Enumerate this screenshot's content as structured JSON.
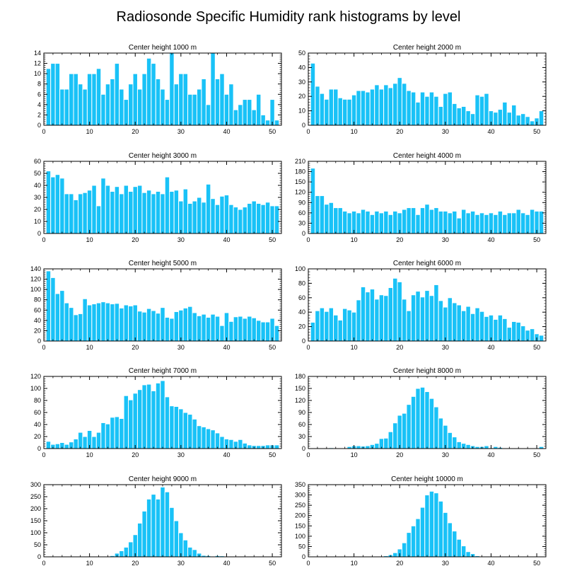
{
  "figure": {
    "title": "Radiosonde Specific Humidity rank histograms by level"
  },
  "chart_data": [
    {
      "type": "bar",
      "title": "Center height 1000 m",
      "xticks": [
        0,
        10,
        20,
        30,
        40,
        50
      ],
      "xlim": [
        0,
        52
      ],
      "ylim": [
        0,
        14
      ],
      "yticks": [
        0,
        2,
        4,
        6,
        8,
        10,
        12,
        14
      ],
      "categories": [
        1,
        2,
        3,
        4,
        5,
        6,
        7,
        8,
        9,
        10,
        11,
        12,
        13,
        14,
        15,
        16,
        17,
        18,
        19,
        20,
        21,
        22,
        23,
        24,
        25,
        26,
        27,
        28,
        29,
        30,
        31,
        32,
        33,
        34,
        35,
        36,
        37,
        38,
        39,
        40,
        41,
        42,
        43,
        44,
        45,
        46,
        47,
        48,
        49,
        50,
        51
      ],
      "values": [
        11,
        12,
        12,
        7,
        7,
        10,
        10,
        8,
        7,
        10,
        10,
        11,
        6,
        8,
        9,
        12,
        7,
        5,
        8,
        10,
        7,
        10,
        13,
        12,
        9,
        7,
        5,
        14,
        8,
        10,
        10,
        6,
        6,
        7,
        9,
        4,
        14,
        9,
        10,
        6,
        8,
        3,
        4,
        5,
        5,
        3,
        6,
        2,
        1,
        5,
        1
      ]
    },
    {
      "type": "bar",
      "title": "Center height 2000 m",
      "xticks": [
        0,
        10,
        20,
        30,
        40,
        50
      ],
      "xlim": [
        0,
        52
      ],
      "ylim": [
        0,
        50
      ],
      "yticks": [
        0,
        10,
        20,
        30,
        40,
        50
      ],
      "categories": [
        1,
        2,
        3,
        4,
        5,
        6,
        7,
        8,
        9,
        10,
        11,
        12,
        13,
        14,
        15,
        16,
        17,
        18,
        19,
        20,
        21,
        22,
        23,
        24,
        25,
        26,
        27,
        28,
        29,
        30,
        31,
        32,
        33,
        34,
        35,
        36,
        37,
        38,
        39,
        40,
        41,
        42,
        43,
        44,
        45,
        46,
        47,
        48,
        49,
        50,
        51
      ],
      "values": [
        43,
        27,
        22,
        18,
        25,
        25,
        19,
        18,
        18,
        21,
        24,
        24,
        23,
        25,
        28,
        25,
        28,
        26,
        29,
        33,
        29,
        24,
        23,
        16,
        23,
        20,
        23,
        20,
        13,
        22,
        23,
        15,
        12,
        13,
        10,
        8,
        21,
        20,
        22,
        10,
        9,
        11,
        16,
        9,
        14,
        7,
        8,
        6,
        3,
        5,
        10
      ]
    },
    {
      "type": "bar",
      "title": "Center height 3000 m",
      "xticks": [
        0,
        10,
        20,
        30,
        40,
        50
      ],
      "xlim": [
        0,
        52
      ],
      "ylim": [
        0,
        60
      ],
      "yticks": [
        0,
        10,
        20,
        30,
        40,
        50,
        60
      ],
      "categories": [
        1,
        2,
        3,
        4,
        5,
        6,
        7,
        8,
        9,
        10,
        11,
        12,
        13,
        14,
        15,
        16,
        17,
        18,
        19,
        20,
        21,
        22,
        23,
        24,
        25,
        26,
        27,
        28,
        29,
        30,
        31,
        32,
        33,
        34,
        35,
        36,
        37,
        38,
        39,
        40,
        41,
        42,
        43,
        44,
        45,
        46,
        47,
        48,
        49,
        50,
        51
      ],
      "values": [
        52,
        47,
        49,
        46,
        33,
        33,
        28,
        33,
        34,
        36,
        40,
        23,
        46,
        40,
        35,
        39,
        33,
        40,
        35,
        39,
        40,
        34,
        36,
        33,
        35,
        33,
        47,
        35,
        36,
        27,
        37,
        25,
        27,
        30,
        26,
        41,
        29,
        24,
        31,
        32,
        24,
        22,
        20,
        22,
        25,
        27,
        25,
        24,
        26,
        23,
        23
      ]
    },
    {
      "type": "bar",
      "title": "Center height 4000 m",
      "xticks": [
        0,
        10,
        20,
        30,
        40,
        50
      ],
      "xlim": [
        0,
        52
      ],
      "ylim": [
        0,
        210
      ],
      "yticks": [
        0,
        30,
        60,
        90,
        120,
        150,
        180,
        210
      ],
      "categories": [
        1,
        2,
        3,
        4,
        5,
        6,
        7,
        8,
        9,
        10,
        11,
        12,
        13,
        14,
        15,
        16,
        17,
        18,
        19,
        20,
        21,
        22,
        23,
        24,
        25,
        26,
        27,
        28,
        29,
        30,
        31,
        32,
        33,
        34,
        35,
        36,
        37,
        38,
        39,
        40,
        41,
        42,
        43,
        44,
        45,
        46,
        47,
        48,
        49,
        50,
        51
      ],
      "values": [
        190,
        110,
        110,
        85,
        90,
        75,
        75,
        65,
        60,
        65,
        60,
        70,
        65,
        55,
        65,
        60,
        65,
        55,
        65,
        60,
        70,
        75,
        75,
        55,
        75,
        85,
        70,
        75,
        65,
        65,
        60,
        65,
        45,
        70,
        60,
        65,
        55,
        60,
        55,
        60,
        55,
        65,
        55,
        60,
        60,
        70,
        60,
        55,
        70,
        65,
        65
      ]
    },
    {
      "type": "bar",
      "title": "Center height 5000 m",
      "xticks": [
        0,
        10,
        20,
        30,
        40,
        50
      ],
      "xlim": [
        0,
        52
      ],
      "ylim": [
        0,
        140
      ],
      "yticks": [
        0,
        20,
        40,
        60,
        80,
        100,
        120,
        140
      ],
      "categories": [
        1,
        2,
        3,
        4,
        5,
        6,
        7,
        8,
        9,
        10,
        11,
        12,
        13,
        14,
        15,
        16,
        17,
        18,
        19,
        20,
        21,
        22,
        23,
        24,
        25,
        26,
        27,
        28,
        29,
        30,
        31,
        32,
        33,
        34,
        35,
        36,
        37,
        38,
        39,
        40,
        41,
        42,
        43,
        44,
        45,
        46,
        47,
        48,
        49,
        50,
        51
      ],
      "values": [
        136,
        123,
        92,
        98,
        74,
        65,
        51,
        53,
        82,
        70,
        72,
        74,
        76,
        74,
        72,
        73,
        64,
        70,
        68,
        70,
        58,
        56,
        63,
        59,
        54,
        65,
        46,
        44,
        57,
        60,
        64,
        67,
        55,
        49,
        52,
        46,
        52,
        48,
        30,
        55,
        38,
        47,
        48,
        44,
        48,
        45,
        40,
        37,
        37,
        44,
        30
      ]
    },
    {
      "type": "bar",
      "title": "Center height 6000 m",
      "xticks": [
        0,
        10,
        20,
        30,
        40,
        50
      ],
      "xlim": [
        0,
        52
      ],
      "ylim": [
        0,
        100
      ],
      "yticks": [
        0,
        20,
        40,
        60,
        80,
        100
      ],
      "categories": [
        1,
        2,
        3,
        4,
        5,
        6,
        7,
        8,
        9,
        10,
        11,
        12,
        13,
        14,
        15,
        16,
        17,
        18,
        19,
        20,
        21,
        22,
        23,
        24,
        25,
        26,
        27,
        28,
        29,
        30,
        31,
        32,
        33,
        34,
        35,
        36,
        37,
        38,
        39,
        40,
        41,
        42,
        43,
        44,
        45,
        46,
        47,
        48,
        49,
        50,
        51
      ],
      "values": [
        26,
        42,
        46,
        41,
        46,
        36,
        29,
        45,
        43,
        40,
        57,
        75,
        68,
        72,
        58,
        64,
        63,
        74,
        87,
        82,
        58,
        42,
        64,
        69,
        61,
        70,
        63,
        78,
        56,
        47,
        60,
        53,
        50,
        42,
        48,
        38,
        46,
        41,
        34,
        36,
        30,
        36,
        31,
        19,
        27,
        26,
        21,
        15,
        17,
        10,
        8
      ]
    },
    {
      "type": "bar",
      "title": "Center height 7000 m",
      "xticks": [
        0,
        10,
        20,
        30,
        40,
        50
      ],
      "xlim": [
        0,
        52
      ],
      "ylim": [
        0,
        120
      ],
      "yticks": [
        0,
        20,
        40,
        60,
        80,
        100,
        120
      ],
      "categories": [
        1,
        2,
        3,
        4,
        5,
        6,
        7,
        8,
        9,
        10,
        11,
        12,
        13,
        14,
        15,
        16,
        17,
        18,
        19,
        20,
        21,
        22,
        23,
        24,
        25,
        26,
        27,
        28,
        29,
        30,
        31,
        32,
        33,
        34,
        35,
        36,
        37,
        38,
        39,
        40,
        41,
        42,
        43,
        44,
        45,
        46,
        47,
        48,
        49,
        50,
        51
      ],
      "values": [
        12,
        7,
        8,
        10,
        7,
        11,
        16,
        27,
        20,
        30,
        20,
        27,
        43,
        41,
        52,
        53,
        50,
        88,
        81,
        92,
        98,
        106,
        107,
        96,
        109,
        113,
        86,
        71,
        70,
        66,
        60,
        57,
        49,
        38,
        36,
        33,
        31,
        26,
        20,
        16,
        15,
        12,
        15,
        9,
        6,
        5,
        5,
        5,
        6,
        6,
        6
      ]
    },
    {
      "type": "bar",
      "title": "Center height 8000 m",
      "xticks": [
        0,
        10,
        20,
        30,
        40,
        50
      ],
      "xlim": [
        0,
        52
      ],
      "ylim": [
        0,
        180
      ],
      "yticks": [
        0,
        30,
        60,
        90,
        120,
        150,
        180
      ],
      "categories": [
        1,
        2,
        3,
        4,
        5,
        6,
        7,
        8,
        9,
        10,
        11,
        12,
        13,
        14,
        15,
        16,
        17,
        18,
        19,
        20,
        21,
        22,
        23,
        24,
        25,
        26,
        27,
        28,
        29,
        30,
        31,
        32,
        33,
        34,
        35,
        36,
        37,
        38,
        39,
        40,
        41,
        42,
        43,
        44,
        45,
        46,
        47,
        48,
        49,
        50,
        51
      ],
      "values": [
        0,
        0,
        0,
        0,
        2,
        1,
        0,
        0,
        5,
        7,
        7,
        6,
        7,
        10,
        13,
        25,
        26,
        42,
        64,
        83,
        88,
        110,
        130,
        150,
        153,
        142,
        125,
        104,
        76,
        58,
        40,
        29,
        17,
        13,
        10,
        7,
        5,
        5,
        7,
        2,
        5,
        3,
        1,
        0,
        1,
        0,
        0,
        1,
        0,
        0,
        5
      ]
    },
    {
      "type": "bar",
      "title": "Center height 9000 m",
      "xticks": [
        0,
        10,
        20,
        30,
        40,
        50
      ],
      "xlim": [
        0,
        52
      ],
      "ylim": [
        0,
        300
      ],
      "yticks": [
        0,
        50,
        100,
        150,
        200,
        250,
        300
      ],
      "categories": [
        1,
        2,
        3,
        4,
        5,
        6,
        7,
        8,
        9,
        10,
        11,
        12,
        13,
        14,
        15,
        16,
        17,
        18,
        19,
        20,
        21,
        22,
        23,
        24,
        25,
        26,
        27,
        28,
        29,
        30,
        31,
        32,
        33,
        34,
        35,
        36,
        37,
        38,
        39,
        40,
        41,
        42,
        43,
        44,
        45,
        46,
        47,
        48,
        49,
        50,
        51
      ],
      "values": [
        0,
        0,
        0,
        0,
        0,
        0,
        0,
        0,
        0,
        0,
        0,
        0,
        0,
        2,
        5,
        15,
        25,
        40,
        62,
        92,
        140,
        190,
        240,
        260,
        240,
        290,
        270,
        205,
        150,
        100,
        70,
        40,
        30,
        15,
        6,
        5,
        3,
        5,
        4,
        2,
        2,
        1,
        1,
        0,
        1,
        0,
        0,
        0,
        0,
        0,
        0
      ]
    },
    {
      "type": "bar",
      "title": "Center height 10000 m",
      "xticks": [
        0,
        10,
        20,
        30,
        40,
        50
      ],
      "xlim": [
        0,
        52
      ],
      "ylim": [
        0,
        350
      ],
      "yticks": [
        0,
        50,
        100,
        150,
        200,
        250,
        300,
        350
      ],
      "categories": [
        1,
        2,
        3,
        4,
        5,
        6,
        7,
        8,
        9,
        10,
        11,
        12,
        13,
        14,
        15,
        16,
        17,
        18,
        19,
        20,
        21,
        22,
        23,
        24,
        25,
        26,
        27,
        28,
        29,
        30,
        31,
        32,
        33,
        34,
        35,
        36,
        37,
        38,
        39,
        40,
        41,
        42,
        43,
        44,
        45,
        46,
        47,
        48,
        49,
        50,
        51
      ],
      "values": [
        0,
        0,
        0,
        0,
        0,
        0,
        0,
        0,
        0,
        0,
        0,
        0,
        0,
        0,
        1,
        3,
        5,
        10,
        20,
        38,
        68,
        118,
        150,
        185,
        240,
        300,
        318,
        310,
        270,
        215,
        165,
        125,
        85,
        53,
        25,
        15,
        5,
        2,
        1,
        1,
        0,
        0,
        0,
        0,
        0,
        0,
        0,
        0,
        0,
        0,
        0
      ]
    }
  ],
  "colors": {
    "bar": "#19c2f7",
    "bar_edge": "#ffffff",
    "axis": "#000000",
    "background": "#ffffff"
  }
}
